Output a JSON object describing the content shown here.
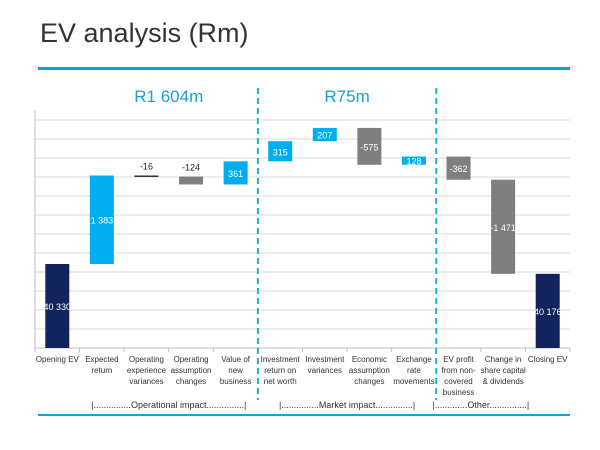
{
  "slide": {
    "title": "EV analysis (Rm)"
  },
  "colors": {
    "accent": "#00a9e0",
    "dark": "#13235b",
    "positive": "#00aeef",
    "negative": "#7f7f7f",
    "connector": "#333333",
    "divider": "#1fb5c4",
    "gridline": "#d9d9d9",
    "heading": "#1a9ed6"
  },
  "chart_data": {
    "type": "bar",
    "subtype": "waterfall",
    "title": "EV analysis (Rm)",
    "unit": "Rm",
    "categories": [
      "Opening EV",
      "Expected return",
      "Operating experience variances",
      "Operating assumption changes",
      "Value of new business",
      "Investment return on net worth",
      "Investment variances",
      "Economic assumption changes",
      "Exchange rate movements",
      "EV profit from non-covered business",
      "Change in share capital & dividends",
      "Closing EV"
    ],
    "category_lines": [
      [
        "Opening EV"
      ],
      [
        "Expected",
        "return"
      ],
      [
        "Operating",
        "experience",
        "variances"
      ],
      [
        "Operating",
        "assumption",
        "changes"
      ],
      [
        "Value of",
        "new",
        "business"
      ],
      [
        "Investment",
        "return on",
        "net worth"
      ],
      [
        "Investment",
        "variances"
      ],
      [
        "Economic",
        "assumption",
        "changes"
      ],
      [
        "Exchange",
        "rate",
        "movements"
      ],
      [
        "EV profit",
        "from non-",
        "covered",
        "business"
      ],
      [
        "Change in",
        "share capital",
        "& dividends"
      ],
      [
        "Closing EV"
      ]
    ],
    "values": [
      40330,
      1383,
      -16,
      -124,
      361,
      315,
      207,
      -575,
      128,
      -362,
      -1471,
      40176
    ],
    "bar_kinds": [
      "total",
      "delta",
      "delta",
      "delta",
      "delta",
      "delta",
      "delta",
      "delta",
      "delta",
      "delta",
      "delta",
      "total"
    ],
    "data_labels": [
      "40 330",
      "1 383",
      "-16",
      "-124",
      "361",
      "315",
      "207",
      "-575",
      "128",
      "-362",
      "-1 471",
      "40 176"
    ],
    "label_position": [
      "inside",
      "inside",
      "above",
      "above",
      "inside",
      "inside",
      "inside",
      "inside",
      "inside",
      "inside",
      "inside",
      "inside"
    ],
    "y_axis_break": true,
    "group_totals": [
      {
        "label": "R1 604m",
        "from": 1,
        "to": 4
      },
      {
        "label": "R75m",
        "from": 5,
        "to": 8
      }
    ],
    "groups": [
      {
        "label": "|...............Operational impact...............|",
        "from": 1,
        "to": 4
      },
      {
        "label": "|...............Market impact...............|",
        "from": 5,
        "to": 8
      },
      {
        "label": "|.............Other...............|",
        "from": 9,
        "to": 10
      }
    ],
    "dividers_after": [
      4,
      8
    ],
    "grid": true,
    "legend": "none"
  }
}
